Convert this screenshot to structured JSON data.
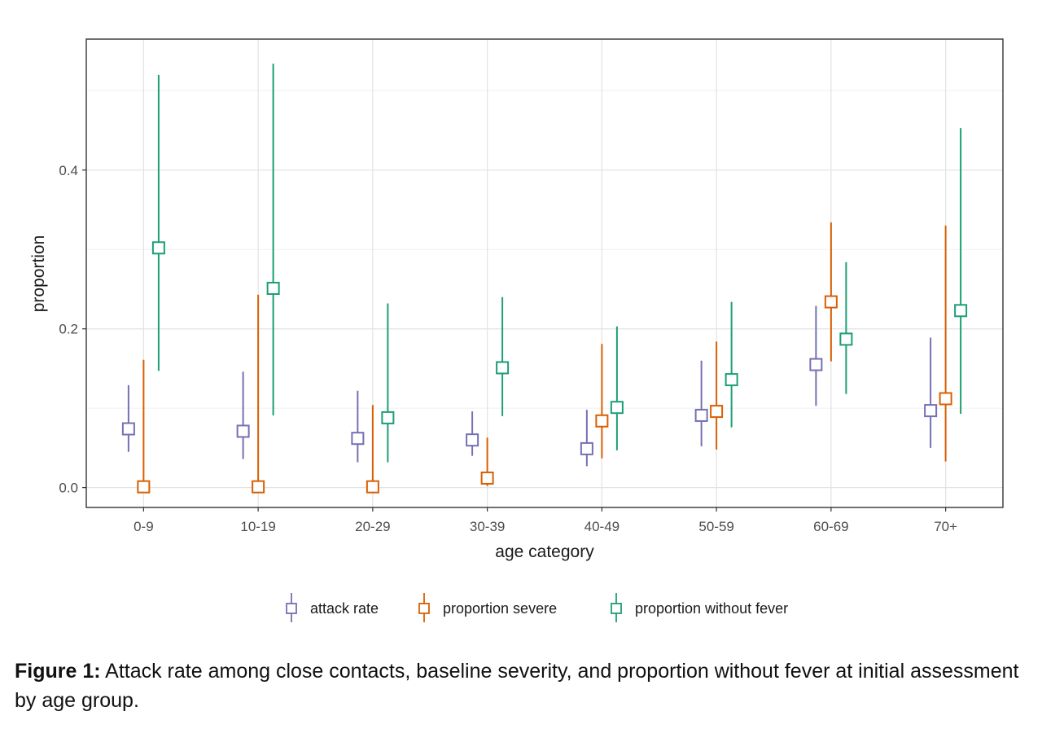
{
  "chart_data": {
    "type": "errorbar",
    "xlabel": "age category",
    "ylabel": "proportion",
    "categories": [
      "0-9",
      "10-19",
      "20-29",
      "30-39",
      "40-49",
      "50-59",
      "60-69",
      "70+"
    ],
    "ylim": [
      -0.025,
      0.565
    ],
    "yticks": [
      0.0,
      0.2,
      0.4
    ],
    "ytick_labels": [
      "0.0",
      "0.2",
      "0.4"
    ],
    "grid": true,
    "legend_position": "bottom",
    "series": [
      {
        "name": "attack rate",
        "color": "#7570b3",
        "values": [
          0.074,
          0.071,
          0.062,
          0.06,
          0.049,
          0.091,
          0.155,
          0.097
        ],
        "lower": [
          0.045,
          0.036,
          0.032,
          0.04,
          0.027,
          0.052,
          0.103,
          0.05
        ],
        "upper": [
          0.129,
          0.146,
          0.122,
          0.096,
          0.098,
          0.16,
          0.229,
          0.189
        ]
      },
      {
        "name": "proportion severe",
        "color": "#d95f02",
        "values": [
          0.001,
          0.001,
          0.001,
          0.012,
          0.084,
          0.096,
          0.234,
          0.112
        ],
        "lower": [
          0.0,
          0.0,
          0.0,
          0.002,
          0.037,
          0.048,
          0.159,
          0.033
        ],
        "upper": [
          0.161,
          0.243,
          0.104,
          0.063,
          0.181,
          0.184,
          0.334,
          0.33
        ]
      },
      {
        "name": "proportion without fever",
        "color": "#1b9e77",
        "values": [
          0.302,
          0.251,
          0.088,
          0.151,
          0.101,
          0.136,
          0.187,
          0.223
        ],
        "lower": [
          0.147,
          0.091,
          0.032,
          0.09,
          0.047,
          0.076,
          0.118,
          0.093
        ],
        "upper": [
          0.52,
          0.534,
          0.232,
          0.24,
          0.203,
          0.234,
          0.284,
          0.453
        ]
      }
    ]
  },
  "caption": {
    "label": "Figure 1:",
    "text": " Attack rate among close contacts, baseline severity, and proportion without fever at initial assessment by age group."
  }
}
